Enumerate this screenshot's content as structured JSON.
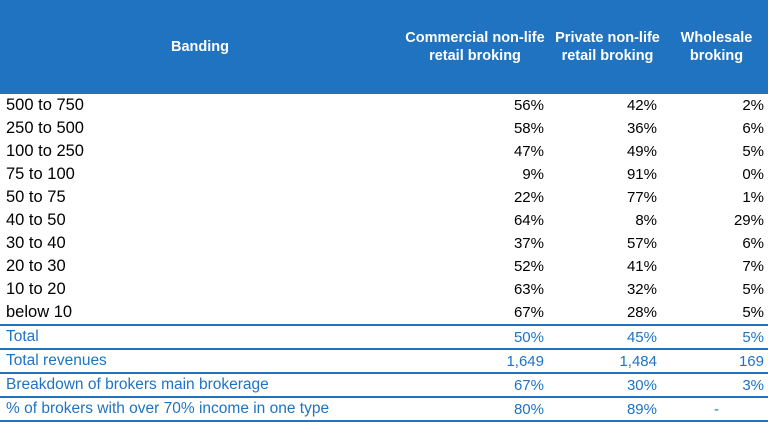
{
  "table": {
    "headers": [
      "Banding",
      "Commercial non-life retail broking",
      "Private non-life retail broking",
      "Wholesale broking"
    ],
    "rows": [
      {
        "banding": "500 to 750",
        "commercial": "56%",
        "private": "42%",
        "wholesale": "2%"
      },
      {
        "banding": "250 to 500",
        "commercial": "58%",
        "private": "36%",
        "wholesale": "6%"
      },
      {
        "banding": "100 to 250",
        "commercial": "47%",
        "private": "49%",
        "wholesale": "5%"
      },
      {
        "banding": "75 to 100",
        "commercial": "9%",
        "private": "91%",
        "wholesale": "0%"
      },
      {
        "banding": "50 to 75",
        "commercial": "22%",
        "private": "77%",
        "wholesale": "1%"
      },
      {
        "banding": "40 to 50",
        "commercial": "64%",
        "private": "8%",
        "wholesale": "29%"
      },
      {
        "banding": "30 to 40",
        "commercial": "37%",
        "private": "57%",
        "wholesale": "6%"
      },
      {
        "banding": "20 to 30",
        "commercial": "52%",
        "private": "41%",
        "wholesale": "7%"
      },
      {
        "banding": "10 to 20",
        "commercial": "63%",
        "private": "32%",
        "wholesale": "5%"
      },
      {
        "banding": "below 10",
        "commercial": "67%",
        "private": "28%",
        "wholesale": "5%"
      }
    ],
    "summary": [
      {
        "label": "Total",
        "commercial": "50%",
        "private": "45%",
        "wholesale": "5%"
      },
      {
        "label": "Total revenues",
        "commercial": "1,649",
        "private": "1,484",
        "wholesale": "169"
      },
      {
        "label": "Breakdown of brokers main brokerage",
        "commercial": "67%",
        "private": "30%",
        "wholesale": "3%"
      },
      {
        "label": "% of brokers with over 70% income in one type",
        "commercial": "80%",
        "private": "89%",
        "wholesale": "-"
      }
    ]
  },
  "colors": {
    "header_bg": "#1f73c1",
    "header_text": "#ffffff",
    "summary_text": "#1f73c1"
  }
}
